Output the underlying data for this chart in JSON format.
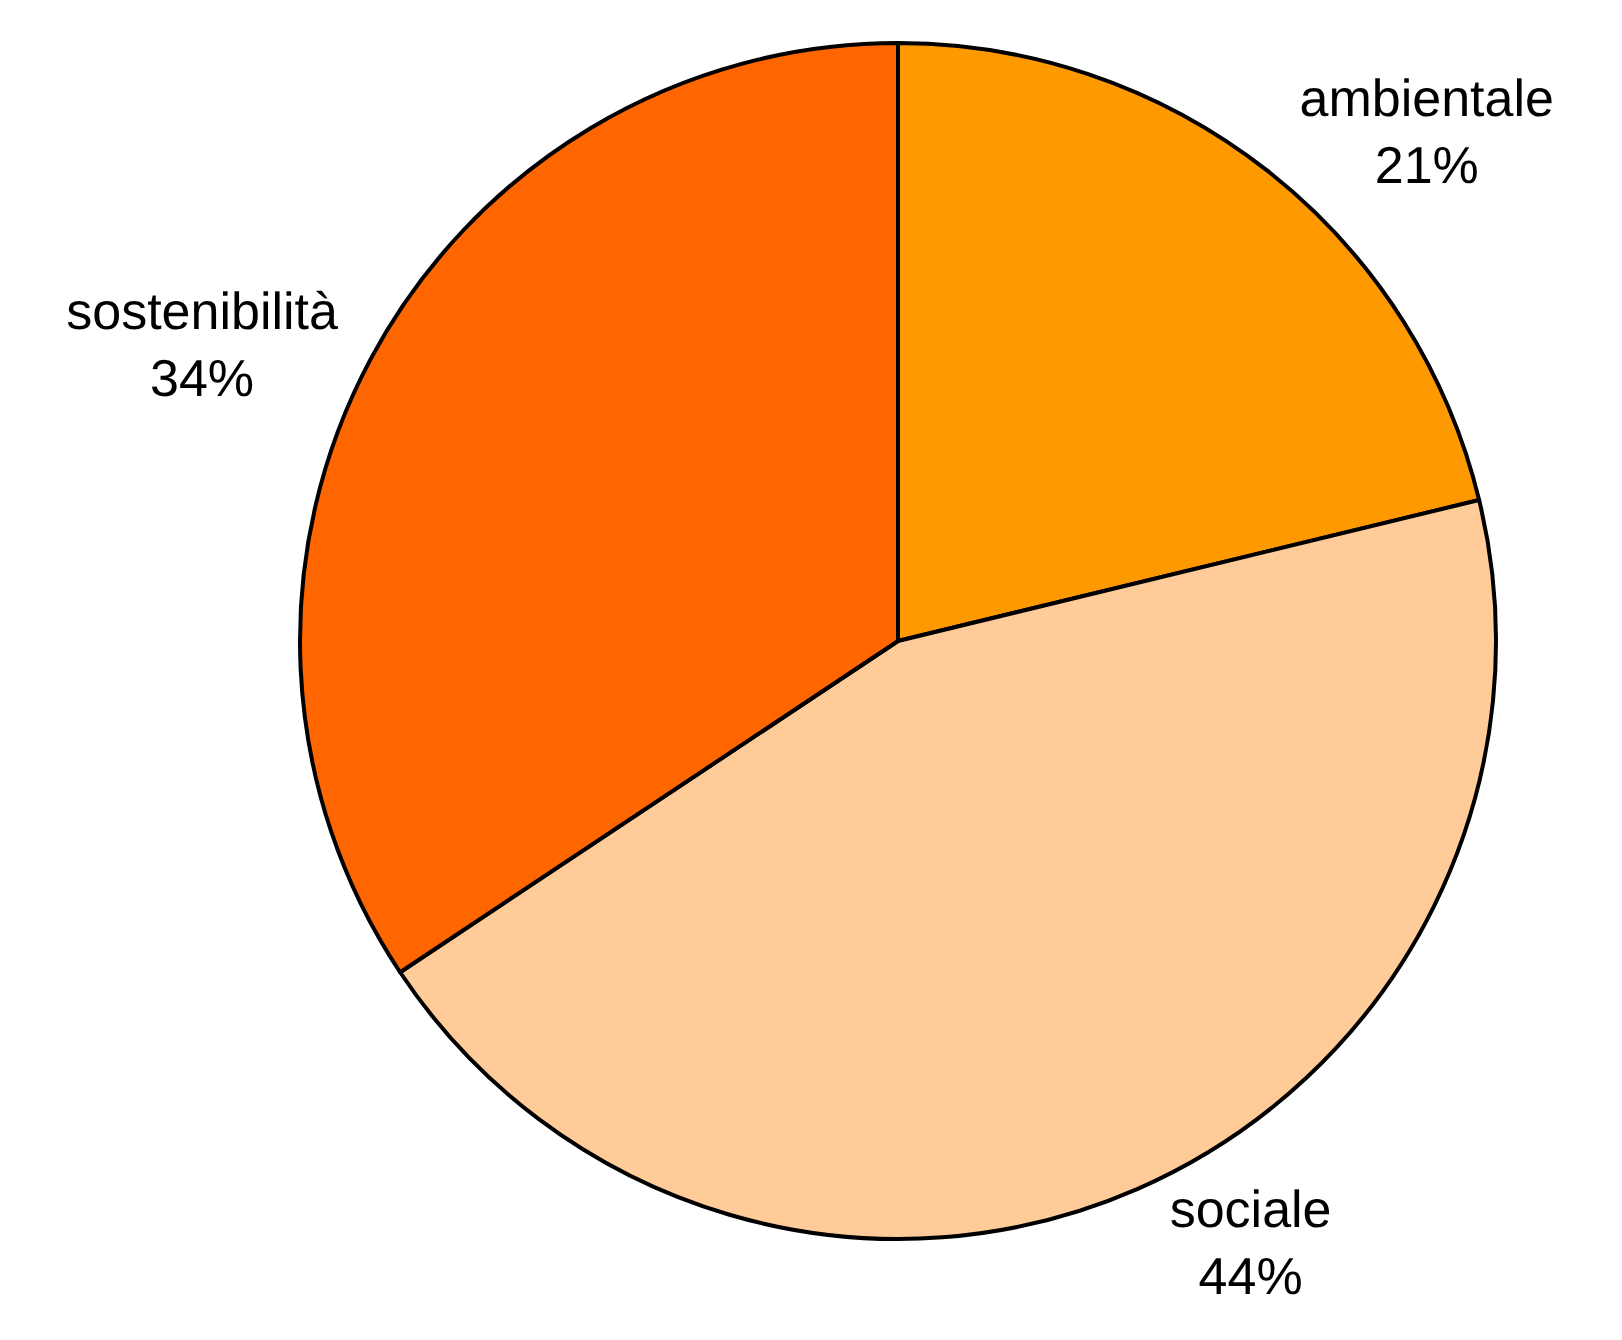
{
  "chart_data": {
    "type": "pie",
    "categories": [
      "ambientale",
      "sociale",
      "sostenibilità"
    ],
    "values": [
      21,
      44,
      34
    ],
    "value_labels": [
      "21%",
      "44%",
      "34%"
    ],
    "colors": [
      "#ff9900",
      "#ffcc99",
      "#ff6600"
    ],
    "legend": false
  }
}
